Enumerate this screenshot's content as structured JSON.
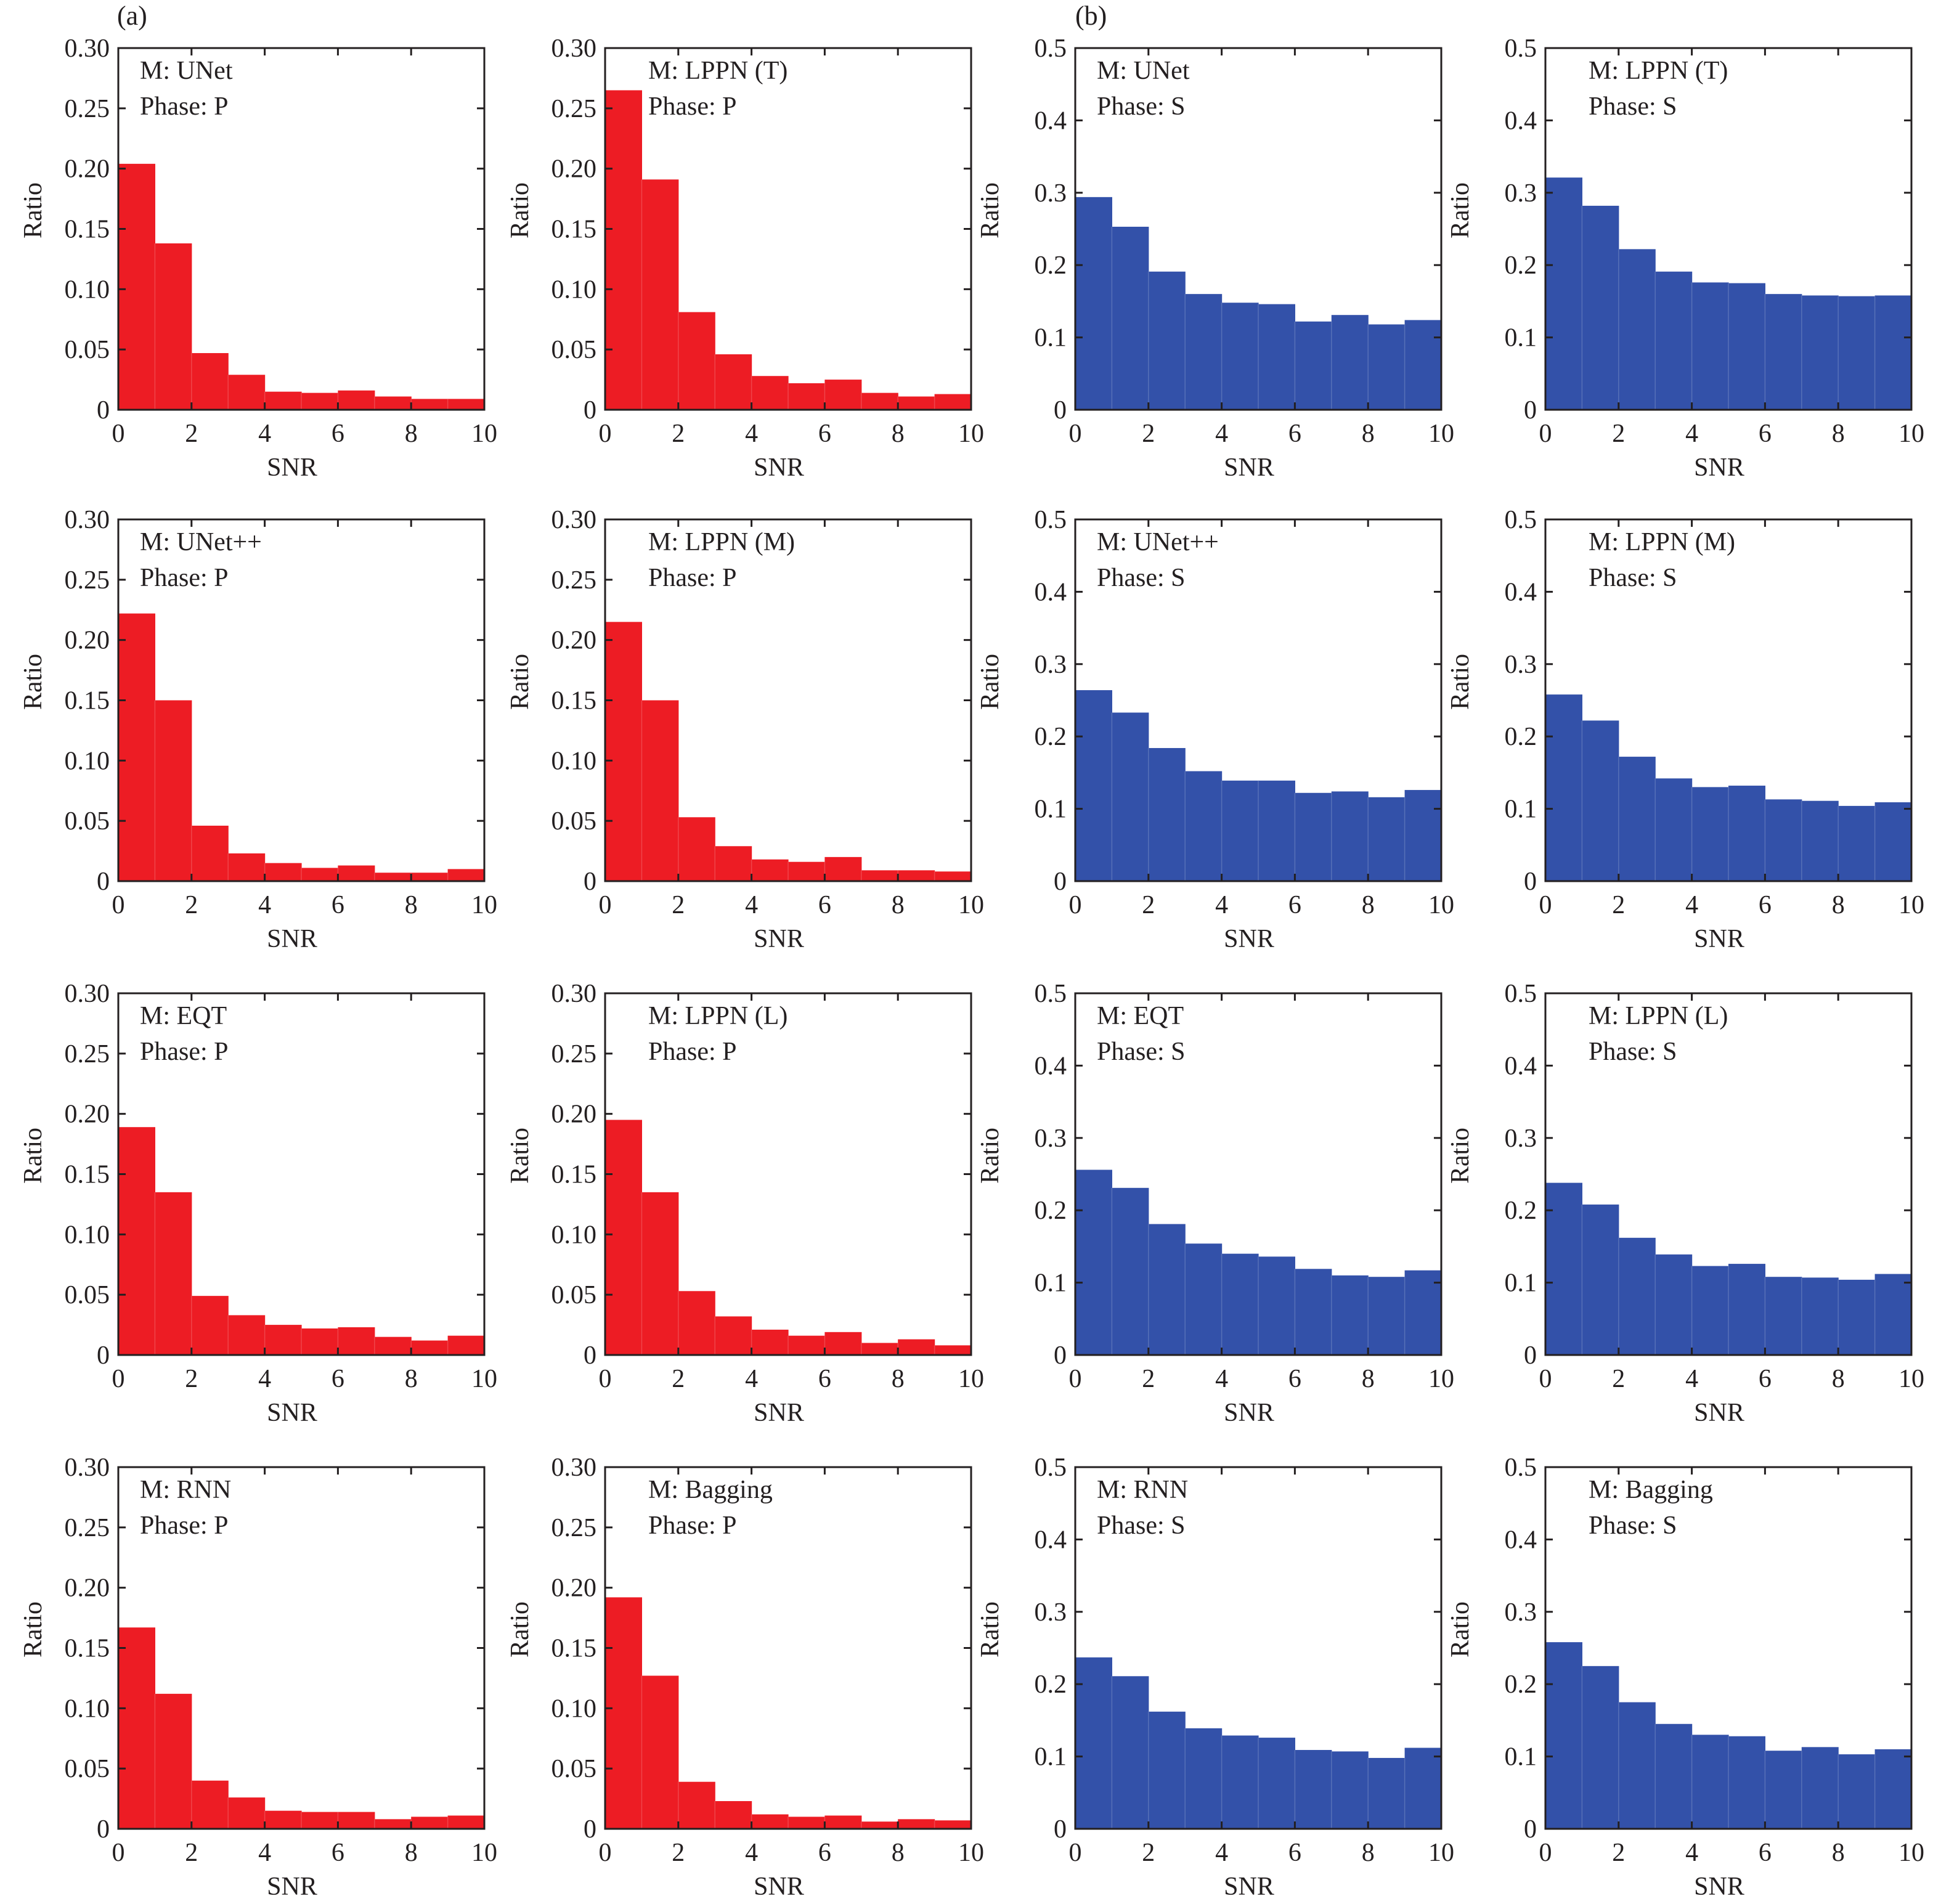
{
  "figure": {
    "label_a": "(a)",
    "label_b": "(b)"
  },
  "colors": {
    "p_bar": "#ed1c24",
    "s_bar": "#3351a9",
    "axis": "#231f20"
  },
  "chart_data": [
    {
      "type": "bar",
      "xlabel": "SNR",
      "ylabel": "Ratio",
      "xlim": [
        0,
        10
      ],
      "ylim": [
        0,
        0.3
      ],
      "xticks": [
        "0",
        "2",
        "4",
        "6",
        "8",
        "10"
      ],
      "yticks": [
        "0",
        "0.05",
        "0.10",
        "0.15",
        "0.20",
        "0.25",
        "0.30"
      ],
      "legend_lines": [
        "M: UNet",
        "Phase: P"
      ],
      "bin_edges": [
        0,
        1,
        2,
        3,
        4,
        5,
        6,
        7,
        8,
        9,
        10
      ],
      "values": [
        0.204,
        0.138,
        0.047,
        0.029,
        0.015,
        0.014,
        0.016,
        0.011,
        0.009,
        0.009
      ]
    },
    {
      "type": "bar",
      "xlabel": "SNR",
      "ylabel": "Ratio",
      "xlim": [
        0,
        10
      ],
      "ylim": [
        0,
        0.3
      ],
      "xticks": [
        "0",
        "2",
        "4",
        "6",
        "8",
        "10"
      ],
      "yticks": [
        "0",
        "0.05",
        "0.10",
        "0.15",
        "0.20",
        "0.25",
        "0.30"
      ],
      "legend_lines": [
        "M: LPPN (T)",
        "Phase: P"
      ],
      "bin_edges": [
        0,
        1,
        2,
        3,
        4,
        5,
        6,
        7,
        8,
        9,
        10
      ],
      "values": [
        0.265,
        0.191,
        0.081,
        0.046,
        0.028,
        0.022,
        0.025,
        0.014,
        0.011,
        0.013
      ]
    },
    {
      "type": "bar",
      "xlabel": "SNR",
      "ylabel": "Ratio",
      "xlim": [
        0,
        10
      ],
      "ylim": [
        0,
        0.5
      ],
      "xticks": [
        "0",
        "2",
        "4",
        "6",
        "8",
        "10"
      ],
      "yticks": [
        "0",
        "0.1",
        "0.2",
        "0.3",
        "0.4",
        "0.5"
      ],
      "legend_lines": [
        "M: UNet",
        "Phase: S"
      ],
      "bin_edges": [
        0,
        1,
        2,
        3,
        4,
        5,
        6,
        7,
        8,
        9,
        10
      ],
      "values": [
        0.294,
        0.253,
        0.191,
        0.16,
        0.148,
        0.146,
        0.122,
        0.131,
        0.118,
        0.124
      ]
    },
    {
      "type": "bar",
      "xlabel": "SNR",
      "ylabel": "Ratio",
      "xlim": [
        0,
        10
      ],
      "ylim": [
        0,
        0.5
      ],
      "xticks": [
        "0",
        "2",
        "4",
        "6",
        "8",
        "10"
      ],
      "yticks": [
        "0",
        "0.1",
        "0.2",
        "0.3",
        "0.4",
        "0.5"
      ],
      "legend_lines": [
        "M: LPPN (T)",
        "Phase: S"
      ],
      "bin_edges": [
        0,
        1,
        2,
        3,
        4,
        5,
        6,
        7,
        8,
        9,
        10
      ],
      "values": [
        0.321,
        0.282,
        0.222,
        0.191,
        0.176,
        0.175,
        0.16,
        0.158,
        0.157,
        0.158
      ]
    },
    {
      "type": "bar",
      "xlabel": "SNR",
      "ylabel": "Ratio",
      "xlim": [
        0,
        10
      ],
      "ylim": [
        0,
        0.3
      ],
      "xticks": [
        "0",
        "2",
        "4",
        "6",
        "8",
        "10"
      ],
      "yticks": [
        "0",
        "0.05",
        "0.10",
        "0.15",
        "0.20",
        "0.25",
        "0.30"
      ],
      "legend_lines": [
        "M: UNet++",
        "Phase: P"
      ],
      "bin_edges": [
        0,
        1,
        2,
        3,
        4,
        5,
        6,
        7,
        8,
        9,
        10
      ],
      "values": [
        0.222,
        0.15,
        0.046,
        0.023,
        0.015,
        0.011,
        0.013,
        0.007,
        0.007,
        0.01
      ]
    },
    {
      "type": "bar",
      "xlabel": "SNR",
      "ylabel": "Ratio",
      "xlim": [
        0,
        10
      ],
      "ylim": [
        0,
        0.3
      ],
      "xticks": [
        "0",
        "2",
        "4",
        "6",
        "8",
        "10"
      ],
      "yticks": [
        "0",
        "0.05",
        "0.10",
        "0.15",
        "0.20",
        "0.25",
        "0.30"
      ],
      "legend_lines": [
        "M: LPPN (M)",
        "Phase: P"
      ],
      "bin_edges": [
        0,
        1,
        2,
        3,
        4,
        5,
        6,
        7,
        8,
        9,
        10
      ],
      "values": [
        0.215,
        0.15,
        0.053,
        0.029,
        0.018,
        0.016,
        0.02,
        0.009,
        0.009,
        0.008
      ]
    },
    {
      "type": "bar",
      "xlabel": "SNR",
      "ylabel": "Ratio",
      "xlim": [
        0,
        10
      ],
      "ylim": [
        0,
        0.5
      ],
      "xticks": [
        "0",
        "2",
        "4",
        "6",
        "8",
        "10"
      ],
      "yticks": [
        "0",
        "0.1",
        "0.2",
        "0.3",
        "0.4",
        "0.5"
      ],
      "legend_lines": [
        "M: UNet++",
        "Phase: S"
      ],
      "bin_edges": [
        0,
        1,
        2,
        3,
        4,
        5,
        6,
        7,
        8,
        9,
        10
      ],
      "values": [
        0.264,
        0.233,
        0.184,
        0.152,
        0.139,
        0.139,
        0.122,
        0.124,
        0.116,
        0.126
      ]
    },
    {
      "type": "bar",
      "xlabel": "SNR",
      "ylabel": "Ratio",
      "xlim": [
        0,
        10
      ],
      "ylim": [
        0,
        0.5
      ],
      "xticks": [
        "0",
        "2",
        "4",
        "6",
        "8",
        "10"
      ],
      "yticks": [
        "0",
        "0.1",
        "0.2",
        "0.3",
        "0.4",
        "0.5"
      ],
      "legend_lines": [
        "M: LPPN (M)",
        "Phase: S"
      ],
      "bin_edges": [
        0,
        1,
        2,
        3,
        4,
        5,
        6,
        7,
        8,
        9,
        10
      ],
      "values": [
        0.258,
        0.222,
        0.172,
        0.142,
        0.13,
        0.132,
        0.113,
        0.111,
        0.104,
        0.109
      ]
    },
    {
      "type": "bar",
      "xlabel": "SNR",
      "ylabel": "Ratio",
      "xlim": [
        0,
        10
      ],
      "ylim": [
        0,
        0.3
      ],
      "xticks": [
        "0",
        "2",
        "4",
        "6",
        "8",
        "10"
      ],
      "yticks": [
        "0",
        "0.05",
        "0.10",
        "0.15",
        "0.20",
        "0.25",
        "0.30"
      ],
      "legend_lines": [
        "M: EQT",
        "Phase: P"
      ],
      "bin_edges": [
        0,
        1,
        2,
        3,
        4,
        5,
        6,
        7,
        8,
        9,
        10
      ],
      "values": [
        0.189,
        0.135,
        0.049,
        0.033,
        0.025,
        0.022,
        0.023,
        0.015,
        0.012,
        0.016
      ]
    },
    {
      "type": "bar",
      "xlabel": "SNR",
      "ylabel": "Ratio",
      "xlim": [
        0,
        10
      ],
      "ylim": [
        0,
        0.3
      ],
      "xticks": [
        "0",
        "2",
        "4",
        "6",
        "8",
        "10"
      ],
      "yticks": [
        "0",
        "0.05",
        "0.10",
        "0.15",
        "0.20",
        "0.25",
        "0.30"
      ],
      "legend_lines": [
        "M: LPPN (L)",
        "Phase: P"
      ],
      "bin_edges": [
        0,
        1,
        2,
        3,
        4,
        5,
        6,
        7,
        8,
        9,
        10
      ],
      "values": [
        0.195,
        0.135,
        0.053,
        0.032,
        0.021,
        0.016,
        0.019,
        0.01,
        0.013,
        0.008
      ]
    },
    {
      "type": "bar",
      "xlabel": "SNR",
      "ylabel": "Ratio",
      "xlim": [
        0,
        10
      ],
      "ylim": [
        0,
        0.5
      ],
      "xticks": [
        "0",
        "2",
        "4",
        "6",
        "8",
        "10"
      ],
      "yticks": [
        "0",
        "0.1",
        "0.2",
        "0.3",
        "0.4",
        "0.5"
      ],
      "legend_lines": [
        "M: EQT",
        "Phase: S"
      ],
      "bin_edges": [
        0,
        1,
        2,
        3,
        4,
        5,
        6,
        7,
        8,
        9,
        10
      ],
      "values": [
        0.256,
        0.231,
        0.181,
        0.154,
        0.14,
        0.136,
        0.119,
        0.11,
        0.108,
        0.117
      ]
    },
    {
      "type": "bar",
      "xlabel": "SNR",
      "ylabel": "Ratio",
      "xlim": [
        0,
        10
      ],
      "ylim": [
        0,
        0.5
      ],
      "xticks": [
        "0",
        "2",
        "4",
        "6",
        "8",
        "10"
      ],
      "yticks": [
        "0",
        "0.1",
        "0.2",
        "0.3",
        "0.4",
        "0.5"
      ],
      "legend_lines": [
        "M: LPPN (L)",
        "Phase: S"
      ],
      "bin_edges": [
        0,
        1,
        2,
        3,
        4,
        5,
        6,
        7,
        8,
        9,
        10
      ],
      "values": [
        0.238,
        0.208,
        0.162,
        0.139,
        0.123,
        0.126,
        0.108,
        0.107,
        0.104,
        0.112
      ]
    },
    {
      "type": "bar",
      "xlabel": "SNR",
      "ylabel": "Ratio",
      "xlim": [
        0,
        10
      ],
      "ylim": [
        0,
        0.3
      ],
      "xticks": [
        "0",
        "2",
        "4",
        "6",
        "8",
        "10"
      ],
      "yticks": [
        "0",
        "0.05",
        "0.10",
        "0.15",
        "0.20",
        "0.25",
        "0.30"
      ],
      "legend_lines": [
        "M: RNN",
        "Phase: P"
      ],
      "bin_edges": [
        0,
        1,
        2,
        3,
        4,
        5,
        6,
        7,
        8,
        9,
        10
      ],
      "values": [
        0.167,
        0.112,
        0.04,
        0.026,
        0.015,
        0.014,
        0.014,
        0.008,
        0.01,
        0.011
      ]
    },
    {
      "type": "bar",
      "xlabel": "SNR",
      "ylabel": "Ratio",
      "xlim": [
        0,
        10
      ],
      "ylim": [
        0,
        0.3
      ],
      "xticks": [
        "0",
        "2",
        "4",
        "6",
        "8",
        "10"
      ],
      "yticks": [
        "0",
        "0.05",
        "0.10",
        "0.15",
        "0.20",
        "0.25",
        "0.30"
      ],
      "legend_lines": [
        "M: Bagging",
        "Phase: P"
      ],
      "bin_edges": [
        0,
        1,
        2,
        3,
        4,
        5,
        6,
        7,
        8,
        9,
        10
      ],
      "values": [
        0.192,
        0.127,
        0.039,
        0.023,
        0.012,
        0.01,
        0.011,
        0.006,
        0.008,
        0.007
      ]
    },
    {
      "type": "bar",
      "xlabel": "SNR",
      "ylabel": "Ratio",
      "xlim": [
        0,
        10
      ],
      "ylim": [
        0,
        0.5
      ],
      "xticks": [
        "0",
        "2",
        "4",
        "6",
        "8",
        "10"
      ],
      "yticks": [
        "0",
        "0.1",
        "0.2",
        "0.3",
        "0.4",
        "0.5"
      ],
      "legend_lines": [
        "M: RNN",
        "Phase: S"
      ],
      "bin_edges": [
        0,
        1,
        2,
        3,
        4,
        5,
        6,
        7,
        8,
        9,
        10
      ],
      "values": [
        0.237,
        0.211,
        0.162,
        0.139,
        0.129,
        0.126,
        0.109,
        0.107,
        0.098,
        0.112
      ]
    },
    {
      "type": "bar",
      "xlabel": "SNR",
      "ylabel": "Ratio",
      "xlim": [
        0,
        10
      ],
      "ylim": [
        0,
        0.5
      ],
      "xticks": [
        "0",
        "2",
        "4",
        "6",
        "8",
        "10"
      ],
      "yticks": [
        "0",
        "0.1",
        "0.2",
        "0.3",
        "0.4",
        "0.5"
      ],
      "legend_lines": [
        "M: Bagging",
        "Phase: S"
      ],
      "bin_edges": [
        0,
        1,
        2,
        3,
        4,
        5,
        6,
        7,
        8,
        9,
        10
      ],
      "values": [
        0.258,
        0.225,
        0.175,
        0.145,
        0.13,
        0.128,
        0.108,
        0.113,
        0.103,
        0.11
      ]
    }
  ]
}
